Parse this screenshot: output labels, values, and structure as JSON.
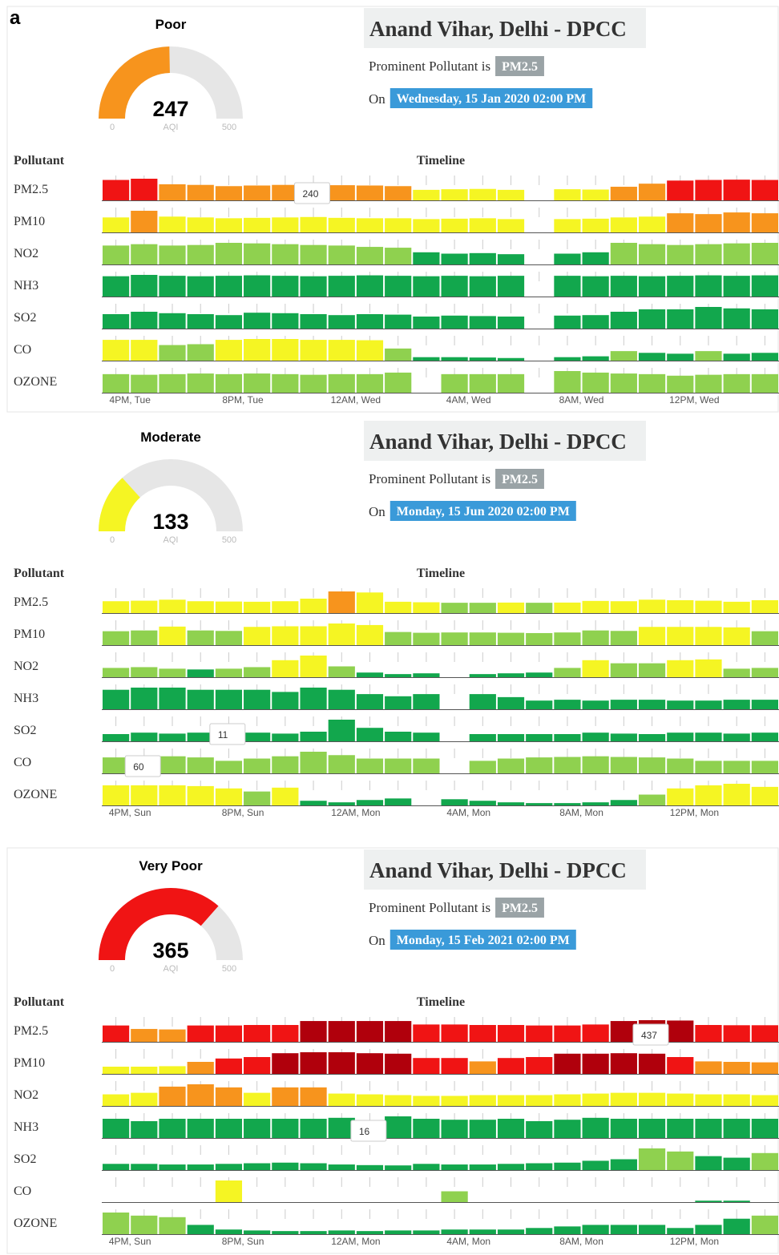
{
  "figure_label": "a",
  "bands": [
    {
      "max": 50,
      "color": "#12a74d"
    },
    {
      "max": 100,
      "color": "#8fd14f"
    },
    {
      "max": 200,
      "color": "#f5f523"
    },
    {
      "max": 300,
      "color": "#f7941d"
    },
    {
      "max": 400,
      "color": "#f01414"
    },
    {
      "max": 500,
      "color": "#b0000c"
    }
  ],
  "panels": [
    {
      "category": "Poor",
      "aqi": 247,
      "gauge_min": 0,
      "gauge_max": 500,
      "gauge_unit": "AQI",
      "station": "Anand Vihar, Delhi - DPCC",
      "pollutant_text": "Prominent Pollutant is",
      "pollutant": "PM2.5",
      "on_text": "On",
      "datetime": "Wednesday, 15 Jan 2020 02:00 PM",
      "pollutant_header": "Pollutant",
      "timeline_header": "Timeline",
      "time_labels": [
        "4PM, Tue",
        "8PM, Tue",
        "12AM, Wed",
        "4AM, Wed",
        "8AM, Wed",
        "12PM, Wed"
      ],
      "series": [
        {
          "name": "PM2.5",
          "tooltip": 7,
          "values": [
            330,
            350,
            260,
            250,
            230,
            240,
            250,
            240,
            245,
            240,
            230,
            170,
            180,
            185,
            170,
            null,
            180,
            175,
            220,
            270,
            320,
            330,
            335,
            330
          ]
        },
        {
          "name": "PM10",
          "values": [
            180,
            260,
            190,
            180,
            170,
            175,
            180,
            185,
            175,
            170,
            170,
            160,
            165,
            170,
            160,
            null,
            160,
            165,
            180,
            190,
            230,
            220,
            240,
            230
          ]
        },
        {
          "name": "NO2",
          "values": [
            70,
            75,
            70,
            72,
            80,
            78,
            75,
            72,
            70,
            65,
            62,
            45,
            40,
            42,
            38,
            null,
            40,
            45,
            80,
            75,
            72,
            75,
            78,
            80
          ]
        },
        {
          "name": "NH3",
          "values": [
            45,
            48,
            46,
            45,
            46,
            47,
            46,
            45,
            46,
            47,
            46,
            45,
            46,
            45,
            46,
            null,
            46,
            45,
            46,
            45,
            46,
            47,
            46,
            47
          ]
        },
        {
          "name": "SO2",
          "values": [
            30,
            35,
            32,
            30,
            28,
            33,
            32,
            30,
            28,
            30,
            29,
            25,
            27,
            26,
            25,
            null,
            27,
            28,
            35,
            40,
            40,
            45,
            42,
            40
          ]
        },
        {
          "name": "CO",
          "values": [
            120,
            120,
            90,
            95,
            120,
            125,
            125,
            120,
            120,
            118,
            70,
            20,
            20,
            18,
            15,
            null,
            20,
            25,
            55,
            45,
            40,
            55,
            40,
            45
          ]
        },
        {
          "name": "OZONE",
          "values": [
            60,
            58,
            60,
            62,
            60,
            62,
            60,
            58,
            60,
            60,
            65,
            null,
            60,
            60,
            60,
            null,
            70,
            65,
            62,
            60,
            55,
            58,
            60,
            60
          ]
        }
      ]
    },
    {
      "category": "Moderate",
      "aqi": 133,
      "gauge_min": 0,
      "gauge_max": 500,
      "gauge_unit": "AQI",
      "station": "Anand Vihar, Delhi - DPCC",
      "pollutant_text": "Prominent Pollutant is",
      "pollutant": "PM2.5",
      "on_text": "On",
      "datetime": "Monday, 15 Jun 2020 02:00 PM",
      "pollutant_header": "Pollutant",
      "timeline_header": "Timeline",
      "time_labels": [
        "4PM, Sun",
        "8PM, Sun",
        "12AM, Mon",
        "4AM, Mon",
        "8AM, Mon",
        "12PM, Mon"
      ],
      "series": [
        {
          "name": "PM2.5",
          "values": [
            115,
            120,
            130,
            115,
            112,
            110,
            115,
            140,
            210,
            200,
            110,
            105,
            100,
            100,
            102,
            100,
            102,
            118,
            115,
            130,
            125,
            120,
            110,
            125
          ]
        },
        {
          "name": "PM10",
          "values": [
            90,
            95,
            120,
            95,
            92,
            118,
            122,
            122,
            140,
            130,
            85,
            80,
            82,
            82,
            80,
            78,
            82,
            95,
            92,
            118,
            118,
            118,
            115,
            90
          ]
        },
        {
          "name": "NO2",
          "values": [
            60,
            65,
            55,
            50,
            55,
            65,
            110,
            140,
            70,
            30,
            20,
            25,
            null,
            20,
            25,
            30,
            60,
            110,
            90,
            90,
            110,
            115,
            55,
            60
          ]
        },
        {
          "name": "NH3",
          "values": [
            45,
            50,
            50,
            45,
            45,
            45,
            40,
            50,
            45,
            35,
            30,
            35,
            null,
            35,
            28,
            20,
            22,
            20,
            22,
            22,
            20,
            20,
            22,
            22
          ]
        },
        {
          "name": "SO2",
          "tooltip": 4,
          "values": [
            15,
            18,
            16,
            18,
            11,
            18,
            16,
            20,
            45,
            28,
            20,
            18,
            null,
            15,
            15,
            15,
            15,
            18,
            16,
            15,
            18,
            18,
            16,
            18
          ]
        },
        {
          "name": "CO",
          "tooltip": 1,
          "values": [
            70,
            60,
            75,
            70,
            55,
            65,
            75,
            95,
            80,
            65,
            65,
            65,
            null,
            55,
            65,
            70,
            72,
            75,
            72,
            70,
            65,
            55,
            55,
            55
          ]
        },
        {
          "name": "OZONE",
          "values": [
            130,
            130,
            130,
            125,
            110,
            90,
            115,
            30,
            20,
            35,
            45,
            null,
            40,
            30,
            20,
            15,
            15,
            20,
            35,
            70,
            110,
            130,
            140,
            120
          ]
        }
      ]
    },
    {
      "category": "Very Poor",
      "aqi": 365,
      "gauge_min": 0,
      "gauge_max": 500,
      "gauge_unit": "AQI",
      "station": "Anand Vihar, Delhi - DPCC",
      "pollutant_text": "Prominent Pollutant is",
      "pollutant": "PM2.5",
      "on_text": "On",
      "datetime": "Monday, 15 Feb 2021 02:00 PM",
      "pollutant_header": "Pollutant",
      "timeline_header": "Timeline",
      "time_labels": [
        "4PM, Sun",
        "8PM, Sun",
        "12AM, Mon",
        "4AM, Mon",
        "8AM, Mon",
        "12PM, Mon"
      ],
      "series": [
        {
          "name": "PM2.5",
          "tooltip": 19,
          "values": [
            330,
            260,
            250,
            330,
            330,
            340,
            340,
            420,
            420,
            420,
            420,
            350,
            350,
            340,
            340,
            330,
            330,
            350,
            420,
            437,
            430,
            340,
            335,
            335
          ]
        },
        {
          "name": "PM10",
          "values": [
            150,
            150,
            160,
            250,
            320,
            350,
            430,
            450,
            450,
            430,
            420,
            330,
            330,
            260,
            330,
            350,
            420,
            420,
            430,
            420,
            350,
            260,
            250,
            240
          ]
        },
        {
          "name": "NO2",
          "values": [
            150,
            170,
            250,
            280,
            240,
            170,
            240,
            240,
            160,
            150,
            140,
            130,
            130,
            140,
            140,
            140,
            150,
            160,
            170,
            170,
            160,
            150,
            150,
            140
          ]
        },
        {
          "name": "NH3",
          "tooltip": 9,
          "values": [
            40,
            35,
            40,
            40,
            40,
            40,
            40,
            40,
            42,
            16,
            45,
            40,
            38,
            38,
            40,
            35,
            38,
            42,
            40,
            40,
            40,
            40,
            40,
            40
          ]
        },
        {
          "name": "SO2",
          "values": [
            20,
            20,
            18,
            18,
            20,
            22,
            24,
            22,
            18,
            16,
            15,
            20,
            18,
            18,
            20,
            22,
            24,
            30,
            35,
            70,
            60,
            45,
            40,
            55
          ]
        },
        {
          "name": "CO",
          "values": [
            0,
            0,
            0,
            0,
            120,
            0,
            0,
            0,
            0,
            0,
            0,
            0,
            60,
            0,
            0,
            0,
            0,
            0,
            0,
            0,
            0,
            8,
            8,
            0
          ]
        },
        {
          "name": "OZONE",
          "values": [
            70,
            60,
            55,
            30,
            15,
            12,
            10,
            10,
            12,
            10,
            12,
            12,
            15,
            15,
            15,
            20,
            25,
            30,
            30,
            30,
            20,
            30,
            50,
            60
          ]
        }
      ]
    }
  ]
}
